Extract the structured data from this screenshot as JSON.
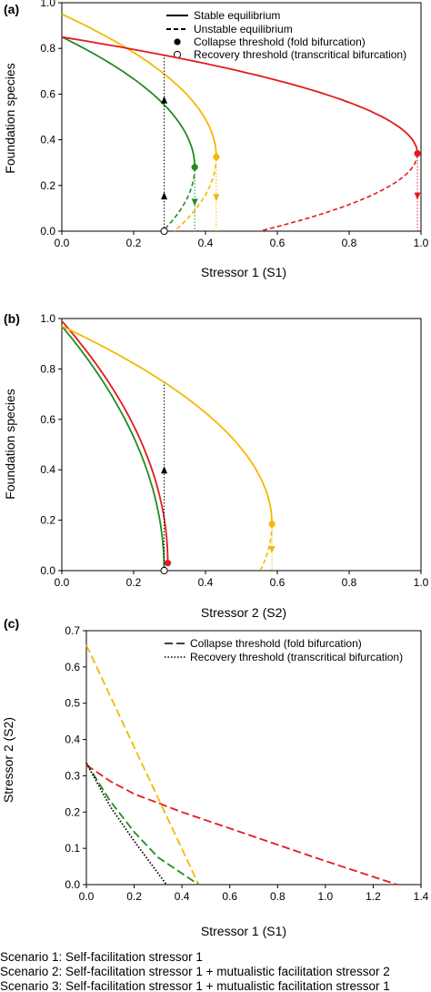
{
  "colors": {
    "green": "#228B22",
    "yellow": "#F5B800",
    "red": "#E31A1C",
    "black": "#000000"
  },
  "legend_a": {
    "stable": "Stable equilibrium",
    "unstable": "Unstable equilibrium",
    "collapse": "Collapse threshold (fold bifurcation)",
    "recovery": "Recovery threshold (transcritical bifurcation)"
  },
  "legend_c": {
    "collapse": "Collapse threshold (fold bifurcation)",
    "recovery": "Recovery threshold (transcritical bifurcation)"
  },
  "scenarios": [
    {
      "label": "Scenario 1: Self-facilitation stressor 1",
      "color": "#228B22"
    },
    {
      "label": "Scenario 2: Self-facilitation stressor 1 + mutualistic facilitation stressor 2",
      "color": "#F5B800"
    },
    {
      "label": "Scenario 3: Self-facilitation stressor 1 + mutualistic facilitation stressor 1",
      "color": "#E31A1C"
    }
  ],
  "chart_data": [
    {
      "panel": "(a)",
      "type": "line",
      "xlabel": "Stressor 1 (S1)",
      "ylabel": "Foundation species",
      "xlim": [
        0,
        1
      ],
      "ylim": [
        0,
        1
      ],
      "xticks": [
        "0.0",
        "0.2",
        "0.4",
        "0.6",
        "0.8",
        "1.0"
      ],
      "yticks": [
        "0.0",
        "0.2",
        "0.4",
        "0.6",
        "0.8",
        "1.0"
      ],
      "recovery_threshold": 0.285,
      "series": [
        {
          "color": "green",
          "start": 0.85,
          "fold": [
            0.37,
            0.28
          ]
        },
        {
          "color": "yellow",
          "start": 0.95,
          "fold": [
            0.43,
            0.325
          ]
        },
        {
          "color": "red",
          "start": 0.85,
          "fold": [
            0.99,
            0.34
          ]
        }
      ]
    },
    {
      "panel": "(b)",
      "type": "line",
      "xlabel": "Stressor 2 (S2)",
      "ylabel": "Foundation species",
      "xlim": [
        0,
        1
      ],
      "ylim": [
        0,
        1
      ],
      "xticks": [
        "0.0",
        "0.2",
        "0.4",
        "0.6",
        "0.8",
        "1.0"
      ],
      "yticks": [
        "0.0",
        "0.2",
        "0.4",
        "0.6",
        "0.8",
        "1.0"
      ],
      "recovery_threshold": 0.285,
      "series": [
        {
          "color": "green",
          "start": 0.97,
          "fold": [
            0.285,
            0.0
          ]
        },
        {
          "color": "red",
          "start": 0.99,
          "fold": [
            0.295,
            0.03
          ]
        },
        {
          "color": "yellow",
          "start": 0.97,
          "fold": [
            0.585,
            0.185
          ]
        }
      ]
    },
    {
      "panel": "(c)",
      "type": "line",
      "xlabel": "Stressor 1 (S1)",
      "ylabel": "Stressor 2 (S2)",
      "xlim": [
        0,
        1.4
      ],
      "ylim": [
        0,
        0.7
      ],
      "xticks": [
        "0.0",
        "0.2",
        "0.4",
        "0.6",
        "0.8",
        "1.0",
        "1.2",
        "1.4"
      ],
      "yticks": [
        "0.0",
        "0.1",
        "0.2",
        "0.3",
        "0.4",
        "0.5",
        "0.6",
        "0.7"
      ],
      "series": [
        {
          "color": "yellow",
          "kind": "collapse",
          "points": [
            [
              0,
              0.66
            ],
            [
              0.47,
              0
            ]
          ]
        },
        {
          "color": "green",
          "kind": "collapse",
          "points": [
            [
              0,
              0.335
            ],
            [
              0.1,
              0.23
            ],
            [
              0.2,
              0.145
            ],
            [
              0.3,
              0.075
            ],
            [
              0.47,
              0
            ]
          ]
        },
        {
          "color": "red",
          "kind": "collapse",
          "points": [
            [
              0,
              0.33
            ],
            [
              0.1,
              0.285
            ],
            [
              0.2,
              0.25
            ],
            [
              0.4,
              0.2
            ],
            [
              0.6,
              0.155
            ],
            [
              0.8,
              0.11
            ],
            [
              1.0,
              0.065
            ],
            [
              1.3,
              0
            ]
          ]
        },
        {
          "color": "black",
          "kind": "recovery",
          "points": [
            [
              0,
              0.335
            ],
            [
              0.1,
              0.215
            ],
            [
              0.2,
              0.12
            ],
            [
              0.335,
              0
            ]
          ]
        }
      ]
    }
  ]
}
